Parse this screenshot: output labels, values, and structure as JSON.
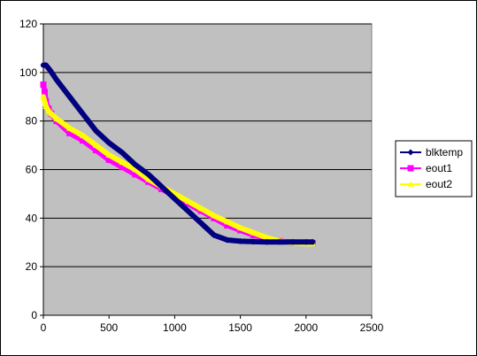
{
  "chart_data": {
    "type": "line",
    "title": "",
    "xlabel": "",
    "ylabel": "",
    "xlim": [
      0,
      2500
    ],
    "ylim": [
      0,
      120
    ],
    "xticks": [
      0,
      500,
      1000,
      1500,
      2000,
      2500
    ],
    "yticks": [
      0,
      20,
      40,
      60,
      80,
      100,
      120
    ],
    "grid": "horizontal",
    "plot_background": "#c0c0c0",
    "legend_position": "right",
    "series": [
      {
        "name": "blktemp",
        "color": "#000080",
        "marker": "diamond",
        "x": [
          0,
          20,
          50,
          100,
          200,
          300,
          400,
          500,
          600,
          700,
          800,
          900,
          1000,
          1100,
          1200,
          1300,
          1400,
          1500,
          1600,
          1700,
          1800,
          1900,
          2000,
          2050
        ],
        "y": [
          103,
          103,
          101,
          97,
          90,
          83,
          76,
          71,
          67,
          62,
          58,
          53,
          48,
          43,
          38,
          33,
          31,
          30.5,
          30.3,
          30.2,
          30.2,
          30.2,
          30.2,
          30.2
        ]
      },
      {
        "name": "eout1",
        "color": "#ff00ff",
        "marker": "square",
        "x": [
          0,
          10,
          20,
          40,
          60,
          100,
          200,
          300,
          400,
          500,
          600,
          700,
          800,
          900,
          1000,
          1100,
          1200,
          1300,
          1400,
          1500,
          1600,
          1700,
          1800,
          1900,
          2000,
          2050
        ],
        "y": [
          95,
          92,
          88,
          85,
          83,
          80,
          75,
          72,
          68,
          64,
          61,
          58,
          55,
          52,
          49,
          46,
          43,
          40,
          37,
          35,
          33,
          31.5,
          30.5,
          30,
          29.8,
          29.8
        ]
      },
      {
        "name": "eout2",
        "color": "#ffff00",
        "marker": "triangle",
        "x": [
          0,
          10,
          20,
          40,
          60,
          100,
          200,
          300,
          400,
          500,
          600,
          700,
          800,
          900,
          1000,
          1100,
          1200,
          1300,
          1400,
          1500,
          1600,
          1700,
          1800,
          1900,
          2000,
          2050
        ],
        "y": [
          90,
          88,
          86,
          84,
          83,
          81,
          77,
          74,
          70,
          66,
          63,
          60,
          56,
          53,
          50,
          47,
          44,
          41,
          38.5,
          36,
          34,
          32,
          30.5,
          29.8,
          29.5,
          29.5
        ]
      }
    ]
  }
}
